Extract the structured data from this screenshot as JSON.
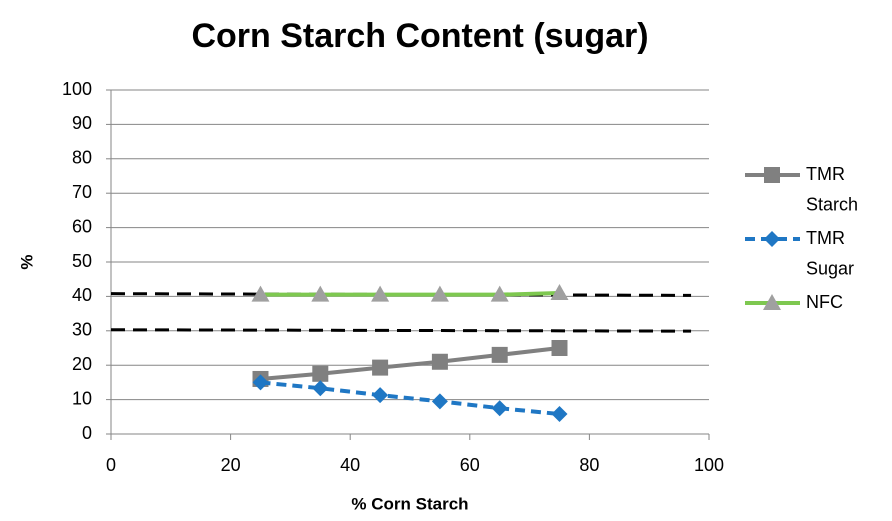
{
  "chart_data": {
    "type": "line",
    "title": "Corn Starch Content (sugar)",
    "x_label": "% Corn Starch",
    "y_label": "%",
    "xlim": [
      0,
      100
    ],
    "xticks": [
      0,
      20,
      40,
      60,
      80,
      100
    ],
    "ylim": [
      0,
      100
    ],
    "yticks": [
      0,
      10,
      20,
      30,
      40,
      50,
      60,
      70,
      80,
      90,
      100
    ],
    "grid": true,
    "legend": "right",
    "series": [
      {
        "name": "TMR Starch",
        "color": "#808080",
        "marker": "square",
        "marker_color": "#808080",
        "dash": false,
        "x": [
          25,
          35,
          45,
          55,
          65,
          75
        ],
        "values": [
          16,
          17.5,
          19.3,
          21,
          23,
          25
        ]
      },
      {
        "name": "TMR Sugar",
        "color": "#1f77c4",
        "marker": "diamond",
        "marker_color": "#1f77c4",
        "dash": true,
        "x": [
          25,
          35,
          45,
          55,
          65,
          75
        ],
        "values": [
          15,
          13.3,
          11.3,
          9.5,
          7.5,
          5.8
        ]
      },
      {
        "name": "NFC",
        "color": "#7ec850",
        "marker": "triangle",
        "marker_color": "#a0a0a0",
        "dash": false,
        "x": [
          25,
          35,
          45,
          55,
          65,
          75
        ],
        "values": [
          40.5,
          40.5,
          40.5,
          40.5,
          40.5,
          41
        ]
      }
    ],
    "reference_lines": [
      {
        "color": "#000000",
        "x": [
          0,
          97
        ],
        "values": [
          40.8,
          40.3
        ]
      },
      {
        "color": "#000000",
        "x": [
          0,
          97
        ],
        "values": [
          30.3,
          29.9
        ]
      }
    ]
  }
}
